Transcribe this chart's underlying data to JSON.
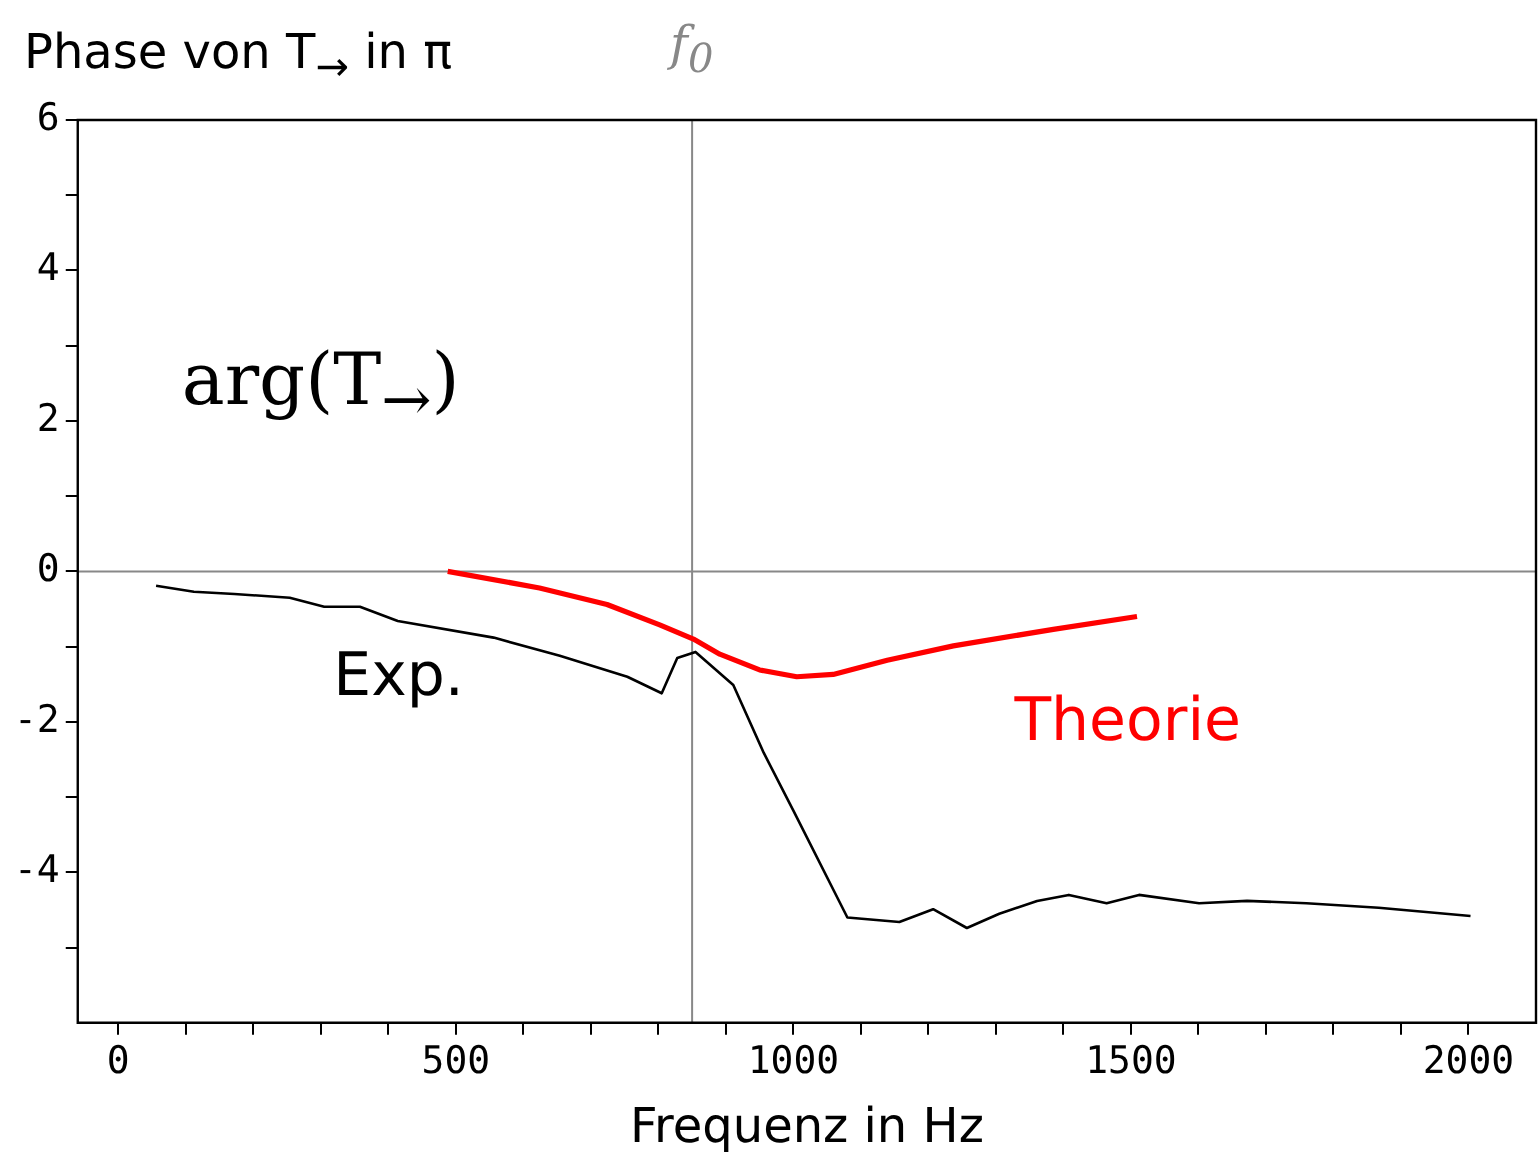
{
  "chart_data": {
    "type": "line",
    "title": "Phase von T$_{→}$ in π",
    "xlabel": "Frequenz in Hz",
    "annotations": [
      "arg(T$_{→}$)"
    ],
    "xlim": [
      -60,
      2100
    ],
    "ylim": [
      -6,
      6
    ],
    "xticks": [
      0,
      {
        "value": 100,
        "label": null
      },
      {
        "value": 200,
        "label": null
      },
      {
        "value": 300,
        "label": null
      },
      {
        "value": 400,
        "label": null
      },
      500,
      {
        "value": 600,
        "label": null
      },
      {
        "value": 700,
        "label": null
      },
      {
        "value": 800,
        "label": null
      },
      {
        "value": 900,
        "label": null
      },
      1000,
      {
        "value": 1100,
        "label": null
      },
      {
        "value": 1200,
        "label": null
      },
      {
        "value": 1300,
        "label": null
      },
      {
        "value": 1400,
        "label": null
      },
      1500,
      {
        "value": 1600,
        "label": null
      },
      {
        "value": 1700,
        "label": null
      },
      {
        "value": 1800,
        "label": null
      },
      {
        "value": 1900,
        "label": null
      },
      2000
    ],
    "yticks": [
      {
        "value": -5,
        "label": null
      },
      -4,
      {
        "value": -3,
        "label": null
      },
      -2,
      {
        "value": -1,
        "label": null
      },
      0,
      {
        "value": 1,
        "label": null
      },
      2,
      {
        "value": 3,
        "label": null
      },
      4,
      {
        "value": 5,
        "label": null
      },
      6
    ],
    "grid": false,
    "legend": false,
    "marker": "none",
    "line_style": "solid",
    "ref_lines": [
      {
        "axis": "x",
        "value": 850,
        "label": "f$_{0}$",
        "color": "#888888"
      },
      {
        "axis": "y",
        "value": 0,
        "color": "#888888"
      }
    ],
    "series": [
      {
        "name": "Exp.",
        "color": "#000000",
        "x": [
          56,
          112,
          172,
          254,
          305,
          358,
          414,
          556,
          654,
          754,
          805,
          828,
          855,
          911,
          956,
          1000,
          1080,
          1157,
          1207,
          1257,
          1305,
          1361,
          1408,
          1464,
          1512,
          1601,
          1672,
          1760,
          1867,
          2003
        ],
        "values": [
          -0.19,
          -0.27,
          -0.3,
          -0.35,
          -0.47,
          -0.47,
          -0.66,
          -0.88,
          -1.12,
          -1.4,
          -1.62,
          -1.15,
          -1.07,
          -1.51,
          -2.41,
          -3.18,
          -4.6,
          -4.66,
          -4.49,
          -4.74,
          -4.55,
          -4.38,
          -4.3,
          -4.41,
          -4.3,
          -4.41,
          -4.38,
          -4.41,
          -4.47,
          -4.58
        ]
      },
      {
        "name": "Theorie",
        "color": "#ff0000",
        "x": [
          488,
          624,
          724,
          802,
          852,
          891,
          950,
          1005,
          1059,
          1139,
          1237,
          1385,
          1509
        ],
        "values": [
          0,
          -0.22,
          -0.44,
          -0.71,
          -0.9,
          -1.1,
          -1.31,
          -1.4,
          -1.37,
          -1.18,
          -0.99,
          -0.77,
          -0.6
        ]
      }
    ]
  }
}
